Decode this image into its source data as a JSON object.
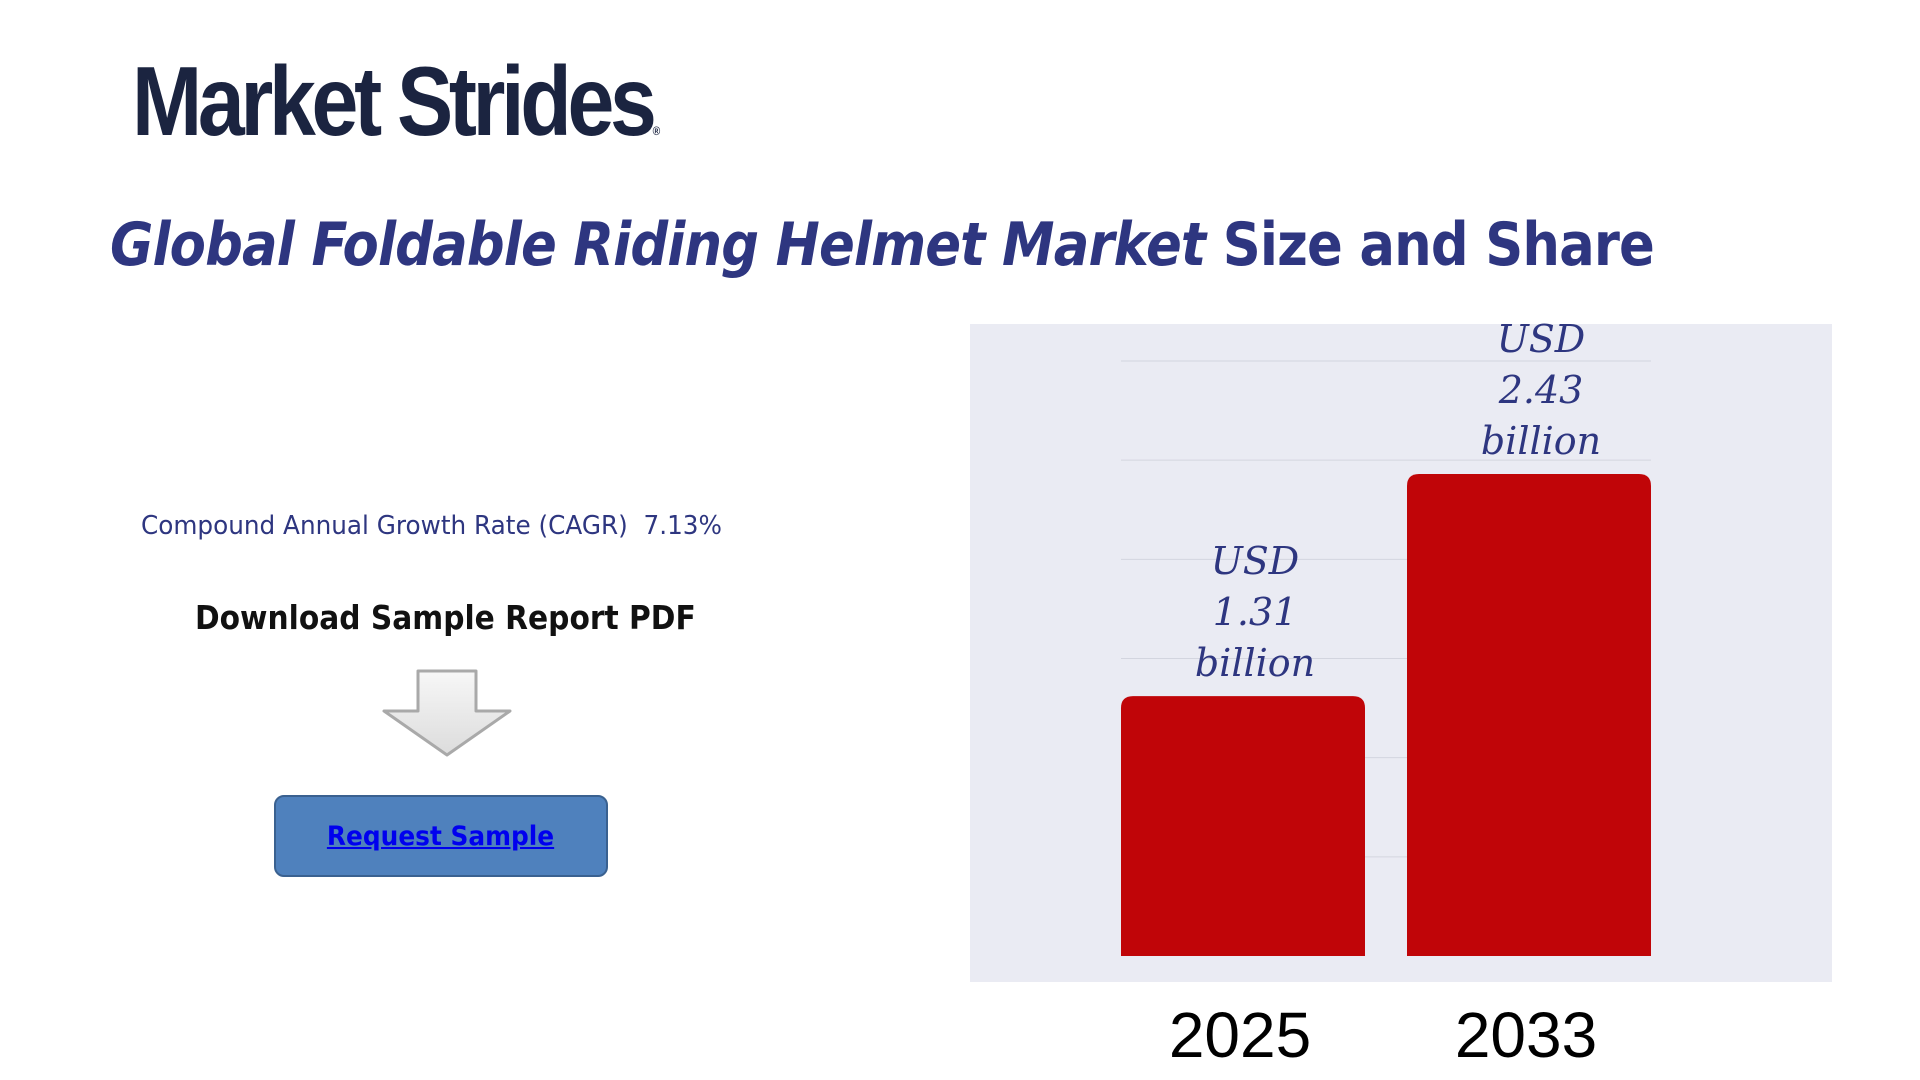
{
  "brand": {
    "name": "Market Strides",
    "registered_mark": "®"
  },
  "title": {
    "italic_part": "Global Foldable Riding Helmet Market",
    "plain_part": " Size and Share"
  },
  "cagr": {
    "label": "Compound Annual Growth Rate (CAGR)",
    "value": "7.13%"
  },
  "download_label": "Download Sample Report PDF",
  "request_button_label": "Request Sample",
  "colors": {
    "brand": "#1b2440",
    "title": "#2e3680",
    "bar": "#c00508",
    "chart_bg": "#eaebf3",
    "button": "#4f81bd"
  },
  "chart_data": {
    "type": "bar",
    "categories": [
      "2025",
      "2033"
    ],
    "values": [
      1.31,
      2.43
    ],
    "data_labels": [
      [
        "USD",
        "1.31",
        "billion"
      ],
      [
        "USD",
        "2.43",
        "billion"
      ]
    ],
    "title": "",
    "xlabel": "",
    "ylabel": "",
    "ylim": [
      0,
      3.0
    ],
    "grid": true
  }
}
